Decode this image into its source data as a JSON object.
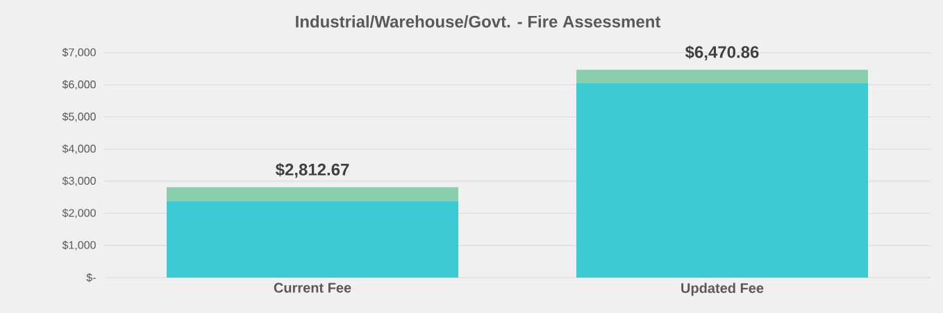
{
  "chart_data": {
    "type": "bar",
    "title": "Industrial/Warehouse/Govt. - Fire Assessment",
    "stacked": true,
    "categories": [
      "Current Fee",
      "Updated Fee"
    ],
    "series": [
      {
        "color": "#3ecad5",
        "values": [
          2390,
          6060
        ]
      },
      {
        "color": "#8bceae",
        "values": [
          422.67,
          410.86
        ]
      }
    ],
    "totals": [
      "$2,812.67",
      "$6,470.86"
    ],
    "ylim": [
      0,
      7000
    ],
    "yticks": [
      {
        "value": 0,
        "label": "$-"
      },
      {
        "value": 1000,
        "label": "$1,000"
      },
      {
        "value": 2000,
        "label": "$2,000"
      },
      {
        "value": 3000,
        "label": "$3,000"
      },
      {
        "value": 4000,
        "label": "$4,000"
      },
      {
        "value": 5000,
        "label": "$5,000"
      },
      {
        "value": 6000,
        "label": "$6,000"
      },
      {
        "value": 7000,
        "label": "$7,000"
      }
    ],
    "grid": "y"
  }
}
